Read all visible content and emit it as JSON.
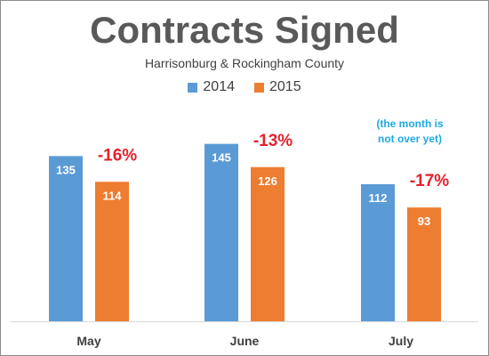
{
  "chart_data": {
    "type": "bar",
    "title": "Contracts Signed",
    "subtitle": "Harrisonburg & Rockingham County",
    "categories": [
      "May",
      "June",
      "July"
    ],
    "series": [
      {
        "name": "2014",
        "values": [
          135,
          145,
          112
        ],
        "color": "#5b9bd5"
      },
      {
        "name": "2015",
        "values": [
          114,
          126,
          93
        ],
        "color": "#ed7d31"
      }
    ],
    "change_labels": [
      "-16%",
      "-13%",
      "-17%"
    ],
    "change_color": "#e5202b",
    "note": [
      "(the month is",
      "not over yet)"
    ],
    "note_color": "#1fa9e1",
    "ylim": [
      0,
      200
    ],
    "grid": false,
    "legend_position": "top"
  }
}
